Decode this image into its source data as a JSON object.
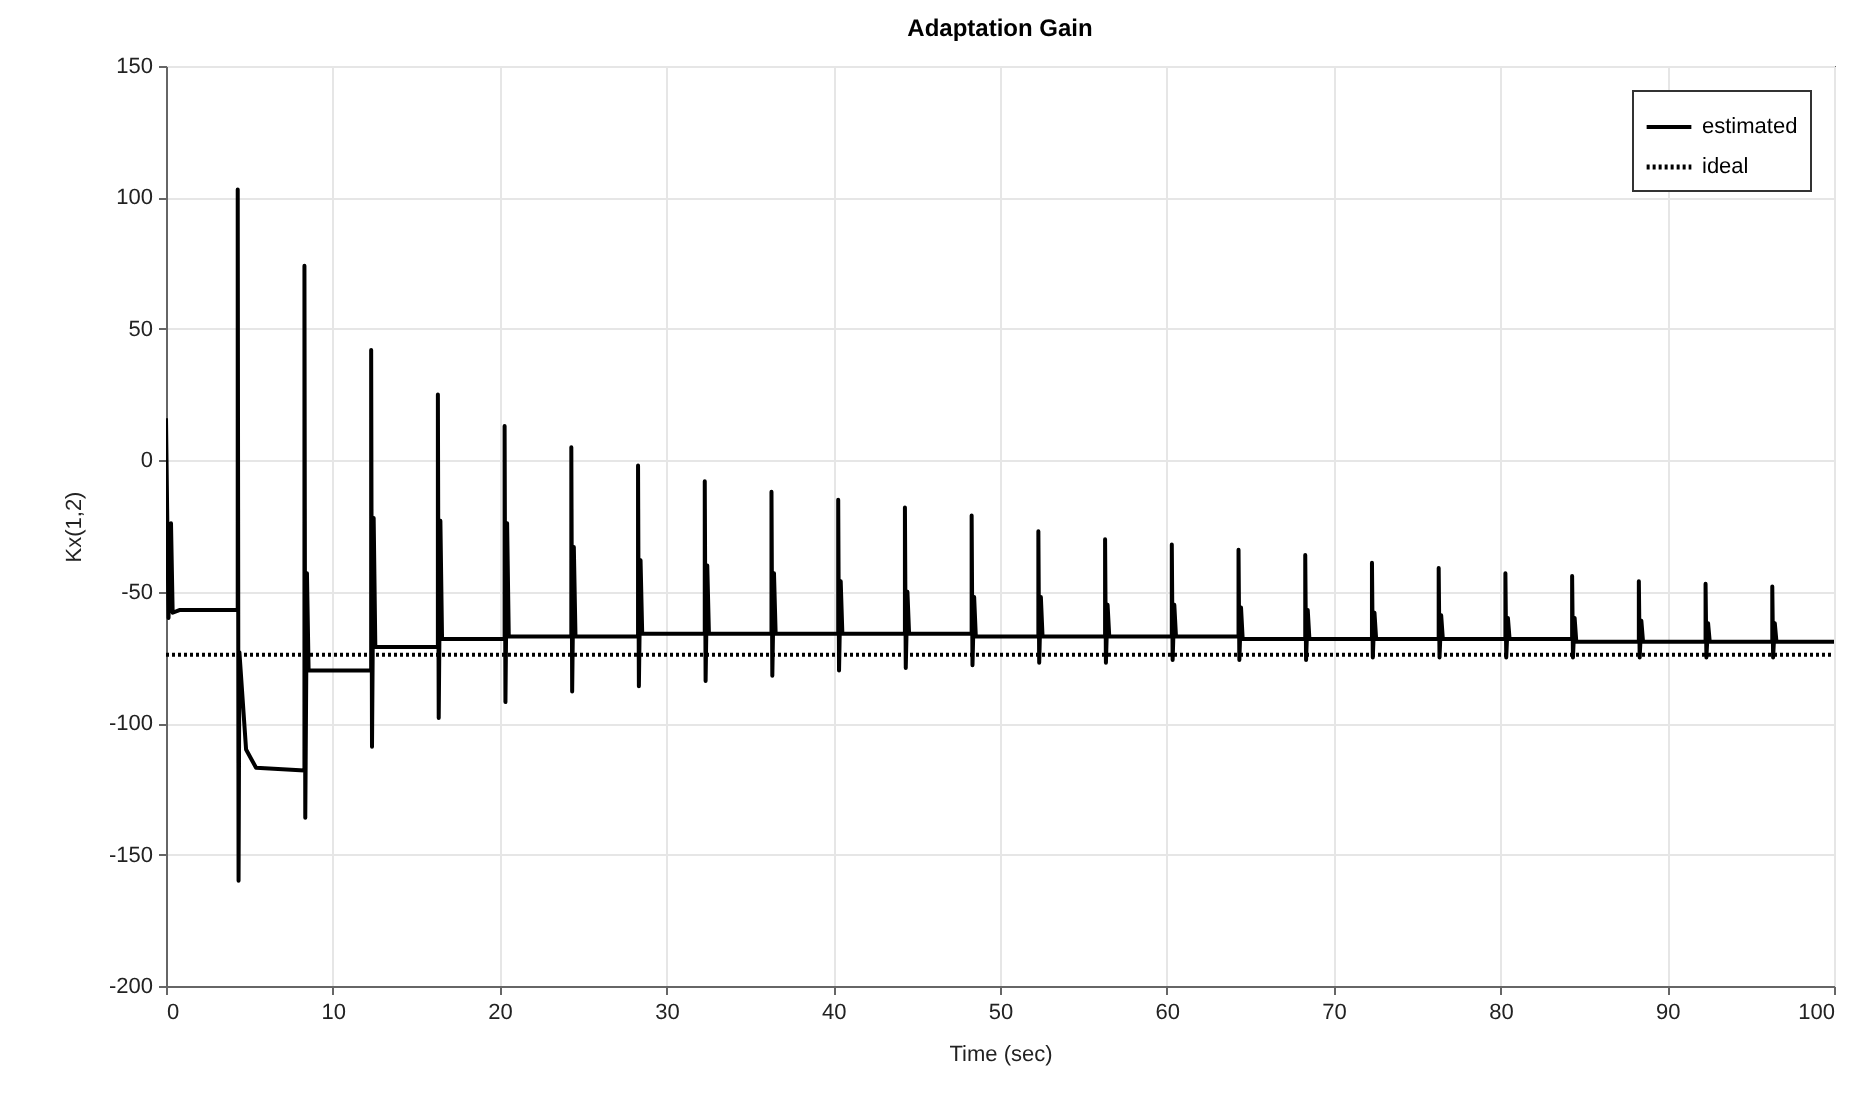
{
  "chart_data": {
    "type": "line",
    "title": "Adaptation Gain",
    "xlabel": "Time (sec)",
    "ylabel": "Kx(1,2)",
    "xlim": [
      0,
      100
    ],
    "xticks": [
      0,
      10,
      20,
      30,
      40,
      50,
      60,
      70,
      80,
      90,
      100
    ],
    "ylim": [
      -200,
      150
    ],
    "yticks": [
      -200,
      -150,
      -100,
      -50,
      0,
      50,
      100,
      150
    ],
    "grid": true,
    "legend": "top right",
    "series": [
      {
        "name": "estimated",
        "color": "#000000",
        "line_style": "solid",
        "x": [
          0,
          0.15,
          0.3,
          0.4,
          0.8,
          4.3,
          4.3,
          4.35,
          4.4,
          4.8,
          5.4,
          8.3,
          8.3,
          8.35,
          8.45,
          8.55,
          12.3,
          12.3,
          12.35,
          12.45,
          12.55,
          16.3,
          16.3,
          16.35,
          16.45,
          16.55,
          20.3,
          20.3,
          20.35,
          20.45,
          20.55,
          24.3,
          24.3,
          24.35,
          24.45,
          24.55,
          28.3,
          28.3,
          28.35,
          28.45,
          28.55,
          32.3,
          32.3,
          32.35,
          32.45,
          32.55,
          36.3,
          36.3,
          36.35,
          36.45,
          36.55,
          40.3,
          40.3,
          40.35,
          40.45,
          40.55,
          44.3,
          44.3,
          44.35,
          44.45,
          44.55,
          48.3,
          48.3,
          48.35,
          48.45,
          48.55,
          52.3,
          52.3,
          52.35,
          52.45,
          52.55,
          56.3,
          56.3,
          56.35,
          56.45,
          56.55,
          60.3,
          60.3,
          60.35,
          60.45,
          60.55,
          64.3,
          64.3,
          64.35,
          64.45,
          64.55,
          68.3,
          68.3,
          68.35,
          68.45,
          68.55,
          72.3,
          72.3,
          72.35,
          72.45,
          72.55,
          76.3,
          76.3,
          76.35,
          76.45,
          76.55,
          80.3,
          80.3,
          80.35,
          80.45,
          80.55,
          84.3,
          84.3,
          84.35,
          84.45,
          84.55,
          88.3,
          88.3,
          88.35,
          88.45,
          88.55,
          92.3,
          92.3,
          92.35,
          92.45,
          92.55,
          96.3,
          96.3,
          96.35,
          96.45,
          96.55,
          100
        ],
        "values": [
          16,
          -60,
          -24,
          -58,
          -57,
          -57,
          103,
          -160,
          -73,
          -110,
          -117,
          -118,
          74,
          -136,
          -43,
          -80,
          -80,
          42,
          -109,
          -22,
          -71,
          -71,
          25,
          -98,
          -23,
          -68,
          -68,
          13,
          -92,
          -24,
          -67,
          -67,
          5,
          -88,
          -33,
          -67,
          -67,
          -2,
          -86,
          -38,
          -66,
          -66,
          -8,
          -84,
          -40,
          -66,
          -66,
          -12,
          -82,
          -43,
          -66,
          -66,
          -15,
          -80,
          -46,
          -66,
          -66,
          -18,
          -79,
          -50,
          -66,
          -66,
          -21,
          -78,
          -52,
          -67,
          -67,
          -27,
          -77,
          -52,
          -67,
          -67,
          -30,
          -77,
          -55,
          -67,
          -67,
          -32,
          -76,
          -55,
          -67,
          -67,
          -34,
          -76,
          -56,
          -68,
          -68,
          -36,
          -76,
          -57,
          -68,
          -68,
          -39,
          -75,
          -58,
          -68,
          -68,
          -41,
          -75,
          -59,
          -68,
          -68,
          -43,
          -75,
          -60,
          -68,
          -68,
          -44,
          -75,
          -60,
          -69,
          -69,
          -46,
          -75,
          -61,
          -69,
          -69,
          -47,
          -75,
          -62,
          -69,
          -69,
          -48,
          -75,
          -62,
          -69,
          -69
        ]
      },
      {
        "name": "ideal",
        "color": "#000000",
        "line_style": "dotted",
        "x": [
          0,
          100
        ],
        "values": [
          -74,
          -74
        ]
      }
    ]
  }
}
